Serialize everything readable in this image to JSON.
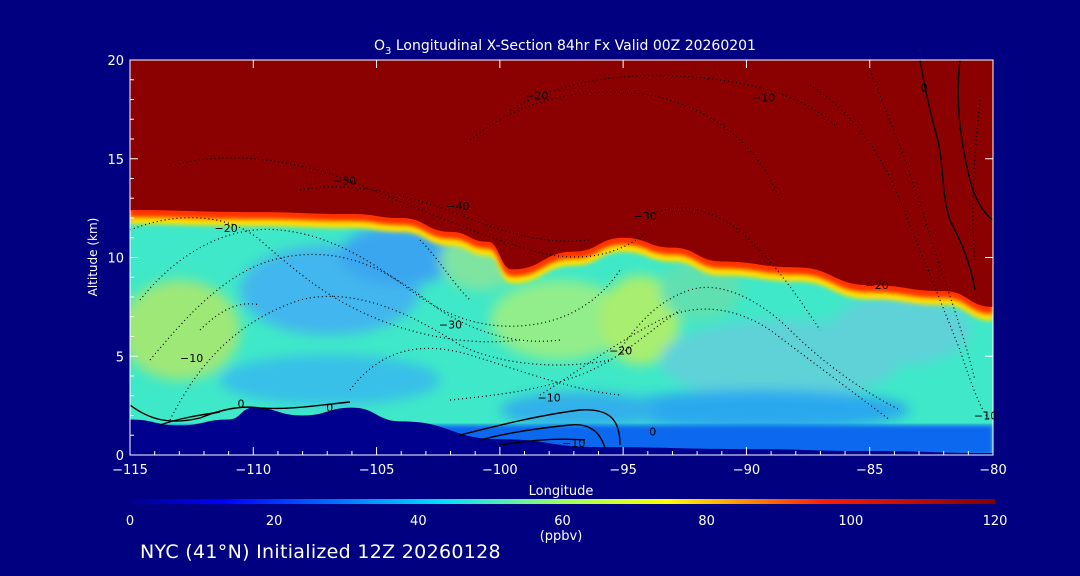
{
  "chart_data": {
    "type": "heatmap",
    "title_prefix": "O",
    "title_sub": "3",
    "title_main": " Longitudinal X-Section 84hr  Fx Valid 00Z 20260201",
    "xlabel": "Longitude",
    "ylabel": "Altitude (km)",
    "xlim": [
      -115,
      -80
    ],
    "ylim": [
      0,
      20
    ],
    "x_ticks": [
      -115,
      -110,
      -105,
      -100,
      -95,
      -90,
      -85,
      -80
    ],
    "x_tick_labels": [
      "−115",
      "−110",
      "−105",
      "−100",
      "−95",
      "−90",
      "−85",
      "−80"
    ],
    "y_ticks": [
      0,
      5,
      10,
      15,
      20
    ],
    "y_tick_labels": [
      "0",
      "5",
      "10",
      "15",
      "20"
    ],
    "colorbar": {
      "min": 0,
      "max": 120,
      "unit": "(ppbv)",
      "ticks": [
        0,
        20,
        40,
        60,
        80,
        100,
        120
      ],
      "tick_labels": [
        "0",
        "20",
        "40",
        "60",
        "80",
        "100",
        "120"
      ]
    },
    "tropopause_height_km": [
      {
        "lon": -115,
        "alt": 12.4
      },
      {
        "lon": -110,
        "alt": 12.3
      },
      {
        "lon": -106,
        "alt": 12.2
      },
      {
        "lon": -104,
        "alt": 12.0
      },
      {
        "lon": -102,
        "alt": 11.3
      },
      {
        "lon": -100.5,
        "alt": 10.8
      },
      {
        "lon": -99.5,
        "alt": 9.4
      },
      {
        "lon": -97,
        "alt": 10.3
      },
      {
        "lon": -95,
        "alt": 11.0
      },
      {
        "lon": -93,
        "alt": 10.5
      },
      {
        "lon": -91,
        "alt": 9.8
      },
      {
        "lon": -88,
        "alt": 9.5
      },
      {
        "lon": -85,
        "alt": 8.6
      },
      {
        "lon": -82,
        "alt": 8.3
      },
      {
        "lon": -80,
        "alt": 7.5
      }
    ],
    "terrain_height_km": [
      {
        "lon": -115,
        "alt": 1.8
      },
      {
        "lon": -113,
        "alt": 1.5
      },
      {
        "lon": -111,
        "alt": 1.8
      },
      {
        "lon": -110,
        "alt": 2.4
      },
      {
        "lon": -108,
        "alt": 2.0
      },
      {
        "lon": -106,
        "alt": 2.4
      },
      {
        "lon": -104,
        "alt": 1.7
      },
      {
        "lon": -100,
        "alt": 0.8
      },
      {
        "lon": -96,
        "alt": 0.4
      },
      {
        "lon": -90,
        "alt": 0.3
      },
      {
        "lon": -85,
        "alt": 0.2
      },
      {
        "lon": -80,
        "alt": 0.1
      }
    ],
    "contour_labels": [
      {
        "label": "−20",
        "lon": -98.5,
        "alt": 18.2
      },
      {
        "label": "−10",
        "lon": -89.3,
        "alt": 18.1
      },
      {
        "label": "0",
        "lon": -82.8,
        "alt": 18.6
      },
      {
        "label": "−30",
        "lon": -106.3,
        "alt": 13.9
      },
      {
        "label": "−40",
        "lon": -101.7,
        "alt": 12.6
      },
      {
        "label": "−30",
        "lon": -94.1,
        "alt": 12.1
      },
      {
        "label": "−20",
        "lon": -111.1,
        "alt": 11.5
      },
      {
        "label": "−30",
        "lon": -102.0,
        "alt": 6.6
      },
      {
        "label": "−20",
        "lon": -95.1,
        "alt": 5.3
      },
      {
        "label": "−20",
        "lon": -84.7,
        "alt": 8.6
      },
      {
        "label": "−10",
        "lon": -112.5,
        "alt": 4.9
      },
      {
        "label": "−10",
        "lon": -98.0,
        "alt": 2.9
      },
      {
        "label": "−10",
        "lon": -80.3,
        "alt": 2.0
      },
      {
        "label": "−10",
        "lon": -97.0,
        "alt": 0.6
      },
      {
        "label": "0",
        "lon": -110.5,
        "alt": 2.6
      },
      {
        "label": "0",
        "lon": -106.9,
        "alt": 2.4
      },
      {
        "label": "0",
        "lon": -93.8,
        "alt": 1.2
      }
    ]
  },
  "caption": "NYC (41°N) Initialized 12Z 20260128"
}
